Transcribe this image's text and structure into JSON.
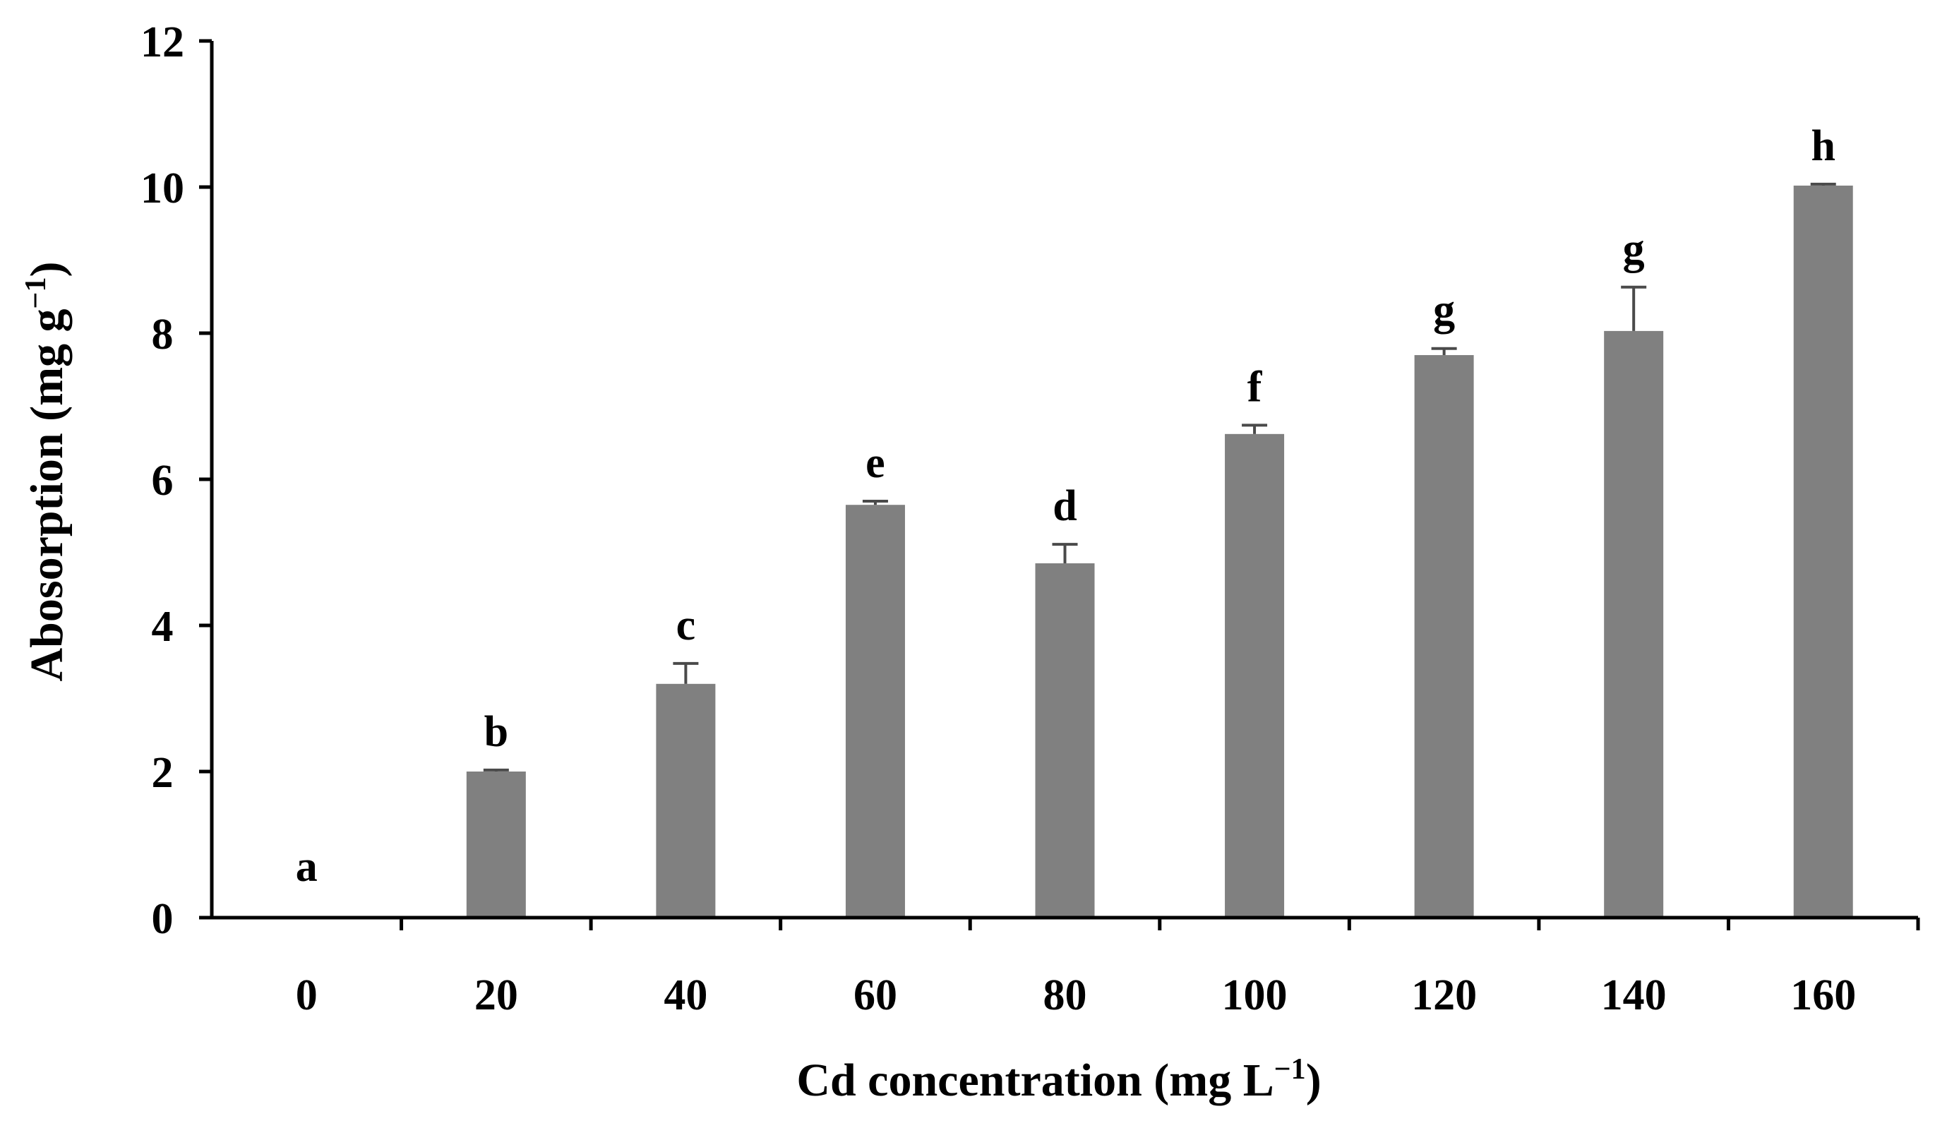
{
  "chart_data": {
    "type": "bar",
    "title": "",
    "xlabel": "Cd concentration (mg L",
    "xlabel_sup": "−1",
    "xlabel_end": ")",
    "ylabel": "Abosorption (mg g",
    "ylabel_sup": "−1",
    "ylabel_end": ")",
    "ylim": [
      0,
      12
    ],
    "yticks": [
      0,
      2,
      4,
      6,
      8,
      10,
      12
    ],
    "categories": [
      "0",
      "20",
      "40",
      "60",
      "80",
      "100",
      "120",
      "140",
      "160"
    ],
    "values": [
      0,
      2.0,
      3.2,
      5.65,
      4.85,
      6.62,
      7.7,
      8.03,
      10.02
    ],
    "errors": [
      0,
      0.02,
      0.28,
      0.05,
      0.26,
      0.12,
      0.09,
      0.6,
      0.02
    ],
    "significance": [
      "a",
      "b",
      "c",
      "e",
      "d",
      "f",
      "g",
      "g",
      "h"
    ],
    "bar_color": "#808080",
    "error_color": "#4a4a4a",
    "grid": false,
    "legend": "none"
  }
}
